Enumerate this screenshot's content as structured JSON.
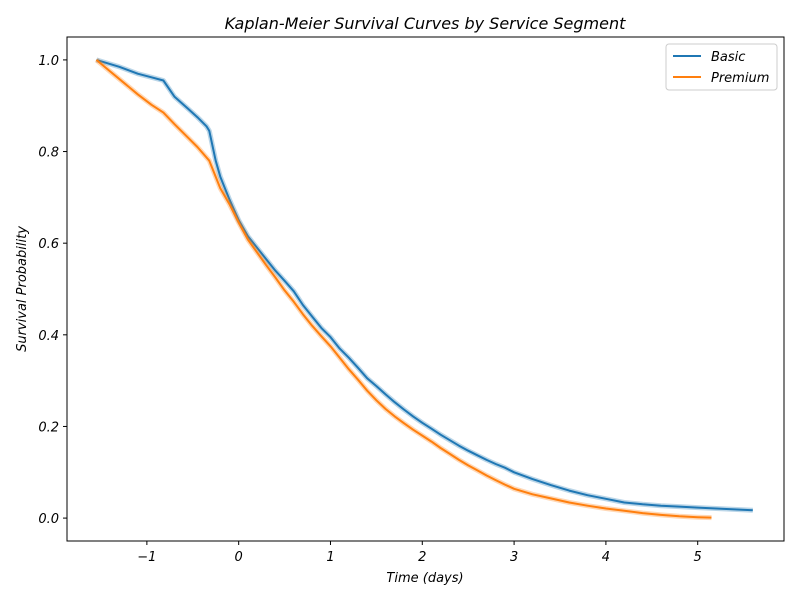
{
  "chart_data": {
    "type": "line",
    "title": "Kaplan-Meier Survival Curves by Service Segment",
    "xlabel": "Time (days)",
    "ylabel": "Survival Probability",
    "xlim": [
      -1.87,
      5.94
    ],
    "ylim": [
      -0.05,
      1.05
    ],
    "xticks": [
      -1,
      0,
      1,
      2,
      3,
      4,
      5
    ],
    "xtick_labels": [
      "−1",
      "0",
      "1",
      "2",
      "3",
      "4",
      "5"
    ],
    "yticks": [
      0.0,
      0.2,
      0.4,
      0.6,
      0.8,
      1.0
    ],
    "ytick_labels": [
      "0.0",
      "0.2",
      "0.4",
      "0.6",
      "0.8",
      "1.0"
    ],
    "grid": false,
    "legend": "top-right",
    "series": [
      {
        "name": "Basic",
        "color": "#1f77b4",
        "x": [
          -1.55,
          -1.3,
          -1.1,
          -0.95,
          -0.82,
          -0.7,
          -0.55,
          -0.45,
          -0.35,
          -0.32,
          -0.25,
          -0.2,
          -0.1,
          0.0,
          0.1,
          0.2,
          0.3,
          0.4,
          0.5,
          0.6,
          0.7,
          0.8,
          0.9,
          1.0,
          1.1,
          1.2,
          1.3,
          1.4,
          1.5,
          1.6,
          1.7,
          1.8,
          1.9,
          2.0,
          2.1,
          2.2,
          2.3,
          2.4,
          2.5,
          2.6,
          2.7,
          2.8,
          2.9,
          3.0,
          3.2,
          3.4,
          3.6,
          3.8,
          4.0,
          4.2,
          4.4,
          4.6,
          4.8,
          5.0,
          5.2,
          5.4,
          5.6
        ],
        "y": [
          1.0,
          0.985,
          0.97,
          0.962,
          0.955,
          0.92,
          0.893,
          0.875,
          0.855,
          0.845,
          0.78,
          0.745,
          0.695,
          0.65,
          0.615,
          0.59,
          0.565,
          0.54,
          0.518,
          0.495,
          0.465,
          0.44,
          0.415,
          0.395,
          0.37,
          0.35,
          0.328,
          0.305,
          0.288,
          0.27,
          0.253,
          0.237,
          0.222,
          0.208,
          0.195,
          0.182,
          0.17,
          0.158,
          0.147,
          0.137,
          0.127,
          0.118,
          0.11,
          0.1,
          0.085,
          0.072,
          0.06,
          0.05,
          0.042,
          0.034,
          0.03,
          0.027,
          0.025,
          0.023,
          0.021,
          0.019,
          0.017
        ]
      },
      {
        "name": "Premium",
        "color": "#ff7f0e",
        "x": [
          -1.55,
          -1.4,
          -1.25,
          -1.1,
          -0.95,
          -0.82,
          -0.7,
          -0.55,
          -0.45,
          -0.32,
          -0.25,
          -0.2,
          -0.1,
          0.0,
          0.1,
          0.2,
          0.3,
          0.4,
          0.5,
          0.6,
          0.7,
          0.8,
          0.9,
          1.0,
          1.1,
          1.2,
          1.3,
          1.4,
          1.5,
          1.6,
          1.7,
          1.8,
          1.9,
          2.0,
          2.1,
          2.2,
          2.3,
          2.4,
          2.5,
          2.6,
          2.7,
          2.8,
          2.9,
          3.0,
          3.2,
          3.4,
          3.6,
          3.8,
          4.0,
          4.2,
          4.4,
          4.6,
          4.8,
          5.0,
          5.15
        ],
        "y": [
          1.0,
          0.975,
          0.95,
          0.925,
          0.902,
          0.885,
          0.86,
          0.83,
          0.81,
          0.78,
          0.745,
          0.72,
          0.685,
          0.645,
          0.608,
          0.58,
          0.552,
          0.525,
          0.497,
          0.472,
          0.445,
          0.42,
          0.397,
          0.375,
          0.35,
          0.325,
          0.302,
          0.278,
          0.257,
          0.238,
          0.222,
          0.207,
          0.193,
          0.18,
          0.167,
          0.153,
          0.14,
          0.127,
          0.115,
          0.104,
          0.093,
          0.083,
          0.073,
          0.064,
          0.052,
          0.043,
          0.034,
          0.027,
          0.021,
          0.016,
          0.011,
          0.007,
          0.004,
          0.002,
          0.001
        ]
      }
    ]
  }
}
